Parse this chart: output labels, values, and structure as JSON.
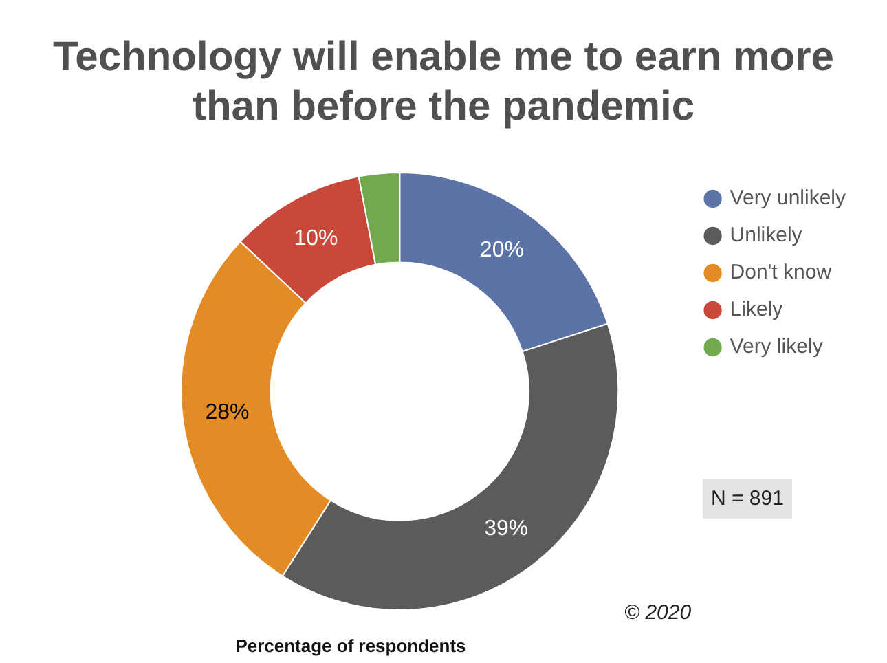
{
  "chart_data": {
    "type": "donut",
    "title": "Technology will enable me to earn more than before the pandemic",
    "xlabel": "Percentage of respondents",
    "categories": [
      "Very unlikely",
      "Unlikely",
      "Don't know",
      "Likely",
      "Very likely"
    ],
    "values": [
      20,
      39,
      28,
      10,
      3
    ],
    "colors": [
      "#5b73a6",
      "#5a5b5a",
      "#e38b24",
      "#c84939",
      "#72a84e"
    ],
    "value_labels": [
      "20%",
      "39%",
      "28%",
      "10%",
      null
    ],
    "legend": "top right",
    "annotations": [
      "N = 891",
      "© 2020"
    ]
  }
}
